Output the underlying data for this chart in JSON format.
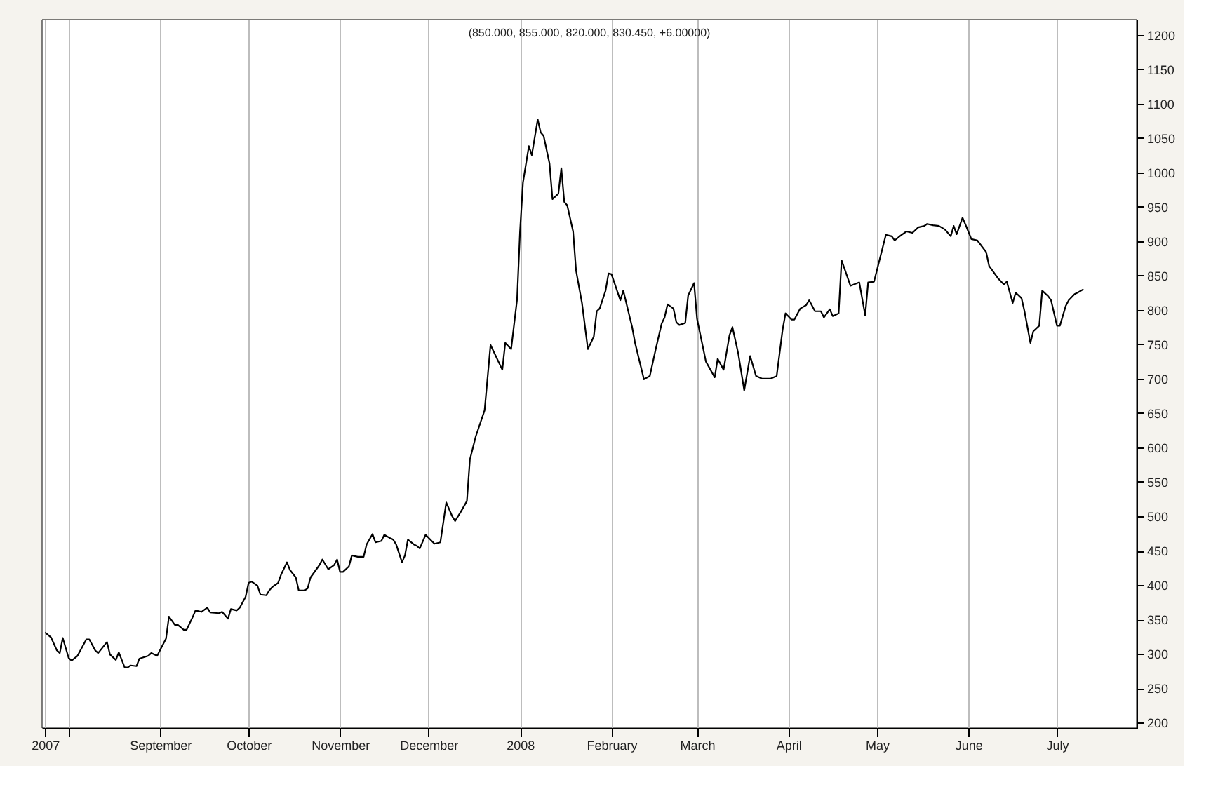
{
  "chart_data": {
    "type": "line",
    "title": "(850.000, 855.000, 820.000, 830.450, +6.00000)",
    "x": [
      "2007-07-24",
      "2007-07-26",
      "2007-07-28",
      "2007-07-29",
      "2007-07-30",
      "2007-08-01",
      "2007-08-02",
      "2007-08-04",
      "2007-08-07",
      "2007-08-08",
      "2007-08-10",
      "2007-08-11",
      "2007-08-14",
      "2007-08-15",
      "2007-08-17",
      "2007-08-18",
      "2007-08-20",
      "2007-08-21",
      "2007-08-22",
      "2007-08-24",
      "2007-08-25",
      "2007-08-28",
      "2007-08-29",
      "2007-08-31",
      "2007-09-03",
      "2007-09-04",
      "2007-09-06",
      "2007-09-07",
      "2007-09-09",
      "2007-09-10",
      "2007-09-12",
      "2007-09-13",
      "2007-09-15",
      "2007-09-17",
      "2007-09-18",
      "2007-09-21",
      "2007-09-22",
      "2007-09-24",
      "2007-09-25",
      "2007-09-27",
      "2007-09-28",
      "2007-09-30",
      "2007-10-01",
      "2007-10-02",
      "2007-10-04",
      "2007-10-05",
      "2007-10-07",
      "2007-10-08",
      "2007-10-09",
      "2007-10-11",
      "2007-10-12",
      "2007-10-14",
      "2007-10-15",
      "2007-10-17",
      "2007-10-18",
      "2007-10-20",
      "2007-10-21",
      "2007-10-22",
      "2007-10-24",
      "2007-10-25",
      "2007-10-26",
      "2007-10-28",
      "2007-10-30",
      "2007-10-31",
      "2007-11-01",
      "2007-11-02",
      "2007-11-04",
      "2007-11-05",
      "2007-11-07",
      "2007-11-09",
      "2007-11-10",
      "2007-11-12",
      "2007-11-13",
      "2007-11-15",
      "2007-11-16",
      "2007-11-18",
      "2007-11-19",
      "2007-11-20",
      "2007-11-22",
      "2007-11-23",
      "2007-11-24",
      "2007-11-26",
      "2007-11-27",
      "2007-11-28",
      "2007-11-30",
      "2007-12-03",
      "2007-12-05",
      "2007-12-07",
      "2007-12-09",
      "2007-12-10",
      "2007-12-12",
      "2007-12-14",
      "2007-12-15",
      "2007-12-17",
      "2007-12-20",
      "2007-12-22",
      "2007-12-26",
      "2007-12-27",
      "2007-12-29",
      "2007-12-31",
      "2008-01-01",
      "2008-01-02",
      "2008-01-04",
      "2008-01-05",
      "2008-01-07",
      "2008-01-08",
      "2008-01-09",
      "2008-01-11",
      "2008-01-12",
      "2008-01-14",
      "2008-01-15",
      "2008-01-16",
      "2008-01-17",
      "2008-01-19",
      "2008-01-20",
      "2008-01-22",
      "2008-01-24",
      "2008-01-26",
      "2008-01-27",
      "2008-01-28",
      "2008-01-30",
      "2008-01-31",
      "2008-02-01",
      "2008-02-04",
      "2008-02-05",
      "2008-02-08",
      "2008-02-09",
      "2008-02-12",
      "2008-02-14",
      "2008-02-16",
      "2008-02-18",
      "2008-02-19",
      "2008-02-20",
      "2008-02-22",
      "2008-02-23",
      "2008-02-24",
      "2008-02-26",
      "2008-02-27",
      "2008-02-29",
      "2008-03-01",
      "2008-03-04",
      "2008-03-07",
      "2008-03-08",
      "2008-03-10",
      "2008-03-12",
      "2008-03-13",
      "2008-03-15",
      "2008-03-17",
      "2008-03-19",
      "2008-03-21",
      "2008-03-23",
      "2008-03-26",
      "2008-03-28",
      "2008-03-30",
      "2008-03-31",
      "2008-04-02",
      "2008-04-03",
      "2008-04-05",
      "2008-04-07",
      "2008-04-08",
      "2008-04-10",
      "2008-04-12",
      "2008-04-13",
      "2008-04-15",
      "2008-04-16",
      "2008-04-18",
      "2008-04-19",
      "2008-04-22",
      "2008-04-25",
      "2008-04-27",
      "2008-04-28",
      "2008-04-30",
      "2008-05-04",
      "2008-05-06",
      "2008-05-07",
      "2008-05-09",
      "2008-05-11",
      "2008-05-13",
      "2008-05-15",
      "2008-05-17",
      "2008-05-18",
      "2008-05-20",
      "2008-05-22",
      "2008-05-24",
      "2008-05-26",
      "2008-05-27",
      "2008-05-28",
      "2008-05-30",
      "2008-05-31",
      "2008-06-02",
      "2008-06-04",
      "2008-06-07",
      "2008-06-08",
      "2008-06-11",
      "2008-06-13",
      "2008-06-14",
      "2008-06-16",
      "2008-06-17",
      "2008-06-19",
      "2008-06-20",
      "2008-06-22",
      "2008-06-23",
      "2008-06-25",
      "2008-06-26",
      "2008-06-28",
      "2008-06-29",
      "2008-07-01",
      "2008-07-02",
      "2008-07-04",
      "2008-07-05",
      "2008-07-07",
      "2008-07-08",
      "2008-07-10"
    ],
    "series": [
      {
        "color": "#000000",
        "values": [
          331,
          324,
          305,
          301,
          323,
          294,
          290,
          297,
          321,
          321,
          305,
          301,
          317,
          299,
          291,
          302,
          280,
          280,
          283,
          282,
          293,
          297,
          301,
          297,
          322,
          354,
          342,
          342,
          335,
          335,
          353,
          363,
          361,
          367,
          360,
          359,
          361,
          351,
          365,
          363,
          367,
          383,
          403,
          405,
          399,
          386,
          385,
          392,
          397,
          403,
          415,
          433,
          422,
          411,
          392,
          392,
          395,
          411,
          423,
          429,
          437,
          423,
          429,
          437,
          419,
          419,
          427,
          443,
          441,
          441,
          459,
          474,
          462,
          464,
          473,
          468,
          466,
          459,
          433,
          443,
          466,
          459,
          457,
          453,
          473,
          460,
          462,
          520,
          500,
          493,
          507,
          522,
          582,
          616,
          654,
          749,
          713,
          752,
          743,
          815,
          914,
          985,
          1038,
          1025,
          1077,
          1058,
          1053,
          1013,
          961,
          969,
          1006,
          957,
          952,
          914,
          857,
          810,
          743,
          761,
          798,
          802,
          828,
          853,
          852,
          814,
          828,
          775,
          752,
          699,
          704,
          743,
          780,
          789,
          808,
          802,
          782,
          778,
          781,
          821,
          839,
          787,
          725,
          702,
          729,
          713,
          763,
          775,
          736,
          683,
          733,
          704,
          700,
          700,
          704,
          771,
          795,
          786,
          786,
          802,
          807,
          814,
          798,
          798,
          789,
          801,
          791,
          795,
          872,
          835,
          840,
          792,
          840,
          841,
          909,
          907,
          901,
          908,
          914,
          912,
          920,
          922,
          925,
          923,
          922,
          917,
          907,
          922,
          910,
          934,
          924,
          903,
          901,
          884,
          864,
          846,
          837,
          841,
          810,
          825,
          817,
          798,
          752,
          769,
          777,
          828,
          820,
          814,
          777,
          777,
          806,
          814,
          823,
          825,
          830
        ]
      }
    ],
    "xlim": [
      "2007-07-23",
      "2008-07-28"
    ],
    "xticks": [
      {
        "value": "2007-07-24",
        "label": "2007"
      },
      {
        "value": "2007-08-01",
        "label": null
      },
      {
        "value": "2007-09-01",
        "label": "September"
      },
      {
        "value": "2007-10-01",
        "label": "October"
      },
      {
        "value": "2007-11-01",
        "label": "November"
      },
      {
        "value": "2007-12-01",
        "label": "December"
      },
      {
        "value": "2008-01-01",
        "label": "2008"
      },
      {
        "value": "2008-02-01",
        "label": "February"
      },
      {
        "value": "2008-03-01",
        "label": "March"
      },
      {
        "value": "2008-04-01",
        "label": "April"
      },
      {
        "value": "2008-05-01",
        "label": "May"
      },
      {
        "value": "2008-06-01",
        "label": "June"
      },
      {
        "value": "2008-07-01",
        "label": "July"
      }
    ],
    "ylim": [
      192,
      1222
    ],
    "yticks": [
      200,
      250,
      300,
      350,
      400,
      450,
      500,
      550,
      600,
      650,
      700,
      750,
      800,
      850,
      900,
      950,
      1000,
      1050,
      1100,
      1150,
      1200
    ],
    "grid": "x",
    "marker": "none",
    "line_style": "solid"
  }
}
